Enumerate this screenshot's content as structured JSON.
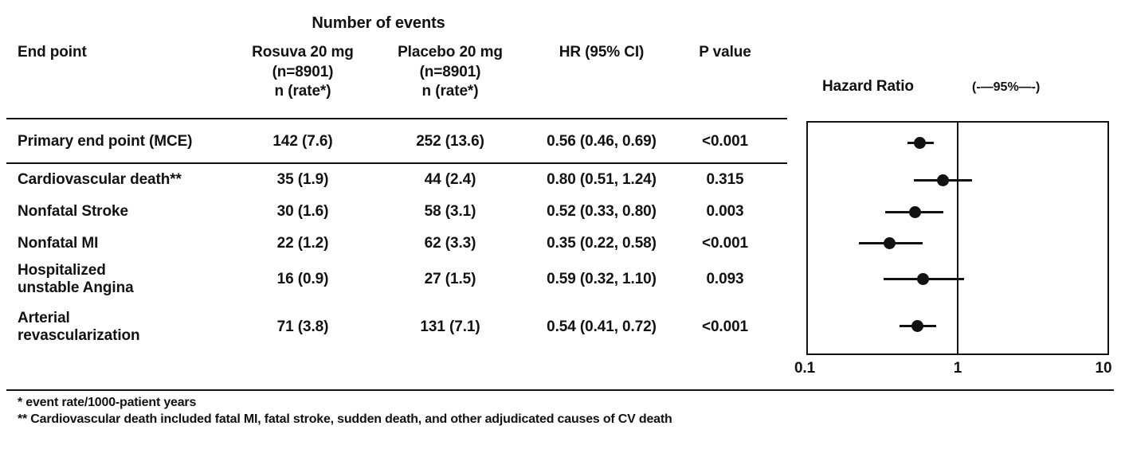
{
  "header": {
    "group_label": "Number of events",
    "columns": {
      "endpoint": "End point",
      "rosuva_lines": [
        "Rosuva 20 mg",
        "(n=8901)",
        "n (rate*)"
      ],
      "placebo_lines": [
        "Placebo 20 mg",
        "(n=8901)",
        "n (rate*)"
      ],
      "hr": "HR (95% CI)",
      "p": "P value"
    }
  },
  "plot": {
    "title": "Hazard Ratio",
    "ci_label": "(-—95%—-)"
  },
  "rows": [
    {
      "endpoint": "Primary end point (MCE)",
      "rosuva": "142 (7.6)",
      "placebo": "252 (13.6)",
      "hr_ci": "0.56 (0.46, 0.69)",
      "p": "<0.001"
    },
    {
      "endpoint": "Cardiovascular death**",
      "rosuva": "35 (1.9)",
      "placebo": "44 (2.4)",
      "hr_ci": "0.80 (0.51, 1.24)",
      "p": "0.315"
    },
    {
      "endpoint": "Nonfatal Stroke",
      "rosuva": "30 (1.6)",
      "placebo": "58 (3.1)",
      "hr_ci": "0.52 (0.33, 0.80)",
      "p": "0.003"
    },
    {
      "endpoint": "Nonfatal MI",
      "rosuva": "22 (1.2)",
      "placebo": "62 (3.3)",
      "hr_ci": "0.35 (0.22, 0.58)",
      "p": "<0.001"
    },
    {
      "endpoint": "Hospitalized\nunstable Angina",
      "rosuva": "16 (0.9)",
      "placebo": "27 (1.5)",
      "hr_ci": "0.59 (0.32, 1.10)",
      "p": "0.093"
    },
    {
      "endpoint": "Arterial\nrevascularization",
      "rosuva": "71 (3.8)",
      "placebo": "131 (7.1)",
      "hr_ci": "0.54 (0.41, 0.72)",
      "p": "<0.001"
    }
  ],
  "footnotes": [
    "* event rate/1000-patient years",
    "** Cardiovascular death included fatal MI, fatal stroke, sudden death, and other adjudicated causes of CV death"
  ],
  "chart_data": {
    "type": "scatter",
    "subtype": "forest-plot",
    "title": "Hazard Ratio",
    "x_scale": "log",
    "xlim": [
      0.1,
      10
    ],
    "x_ticks": [
      "0.1",
      "1",
      "10"
    ],
    "reference_line": 1,
    "marker_color": "#121212",
    "series": [
      {
        "name": "Primary end point (MCE)",
        "hr": 0.56,
        "ci_low": 0.46,
        "ci_high": 0.69,
        "p": "<0.001"
      },
      {
        "name": "Cardiovascular death",
        "hr": 0.8,
        "ci_low": 0.51,
        "ci_high": 1.24,
        "p": "0.315"
      },
      {
        "name": "Nonfatal Stroke",
        "hr": 0.52,
        "ci_low": 0.33,
        "ci_high": 0.8,
        "p": "0.003"
      },
      {
        "name": "Nonfatal MI",
        "hr": 0.35,
        "ci_low": 0.22,
        "ci_high": 0.58,
        "p": "<0.001"
      },
      {
        "name": "Hospitalized unstable Angina",
        "hr": 0.59,
        "ci_low": 0.32,
        "ci_high": 1.1,
        "p": "0.093"
      },
      {
        "name": "Arterial revascularization",
        "hr": 0.54,
        "ci_low": 0.41,
        "ci_high": 0.72,
        "p": "<0.001"
      }
    ]
  }
}
